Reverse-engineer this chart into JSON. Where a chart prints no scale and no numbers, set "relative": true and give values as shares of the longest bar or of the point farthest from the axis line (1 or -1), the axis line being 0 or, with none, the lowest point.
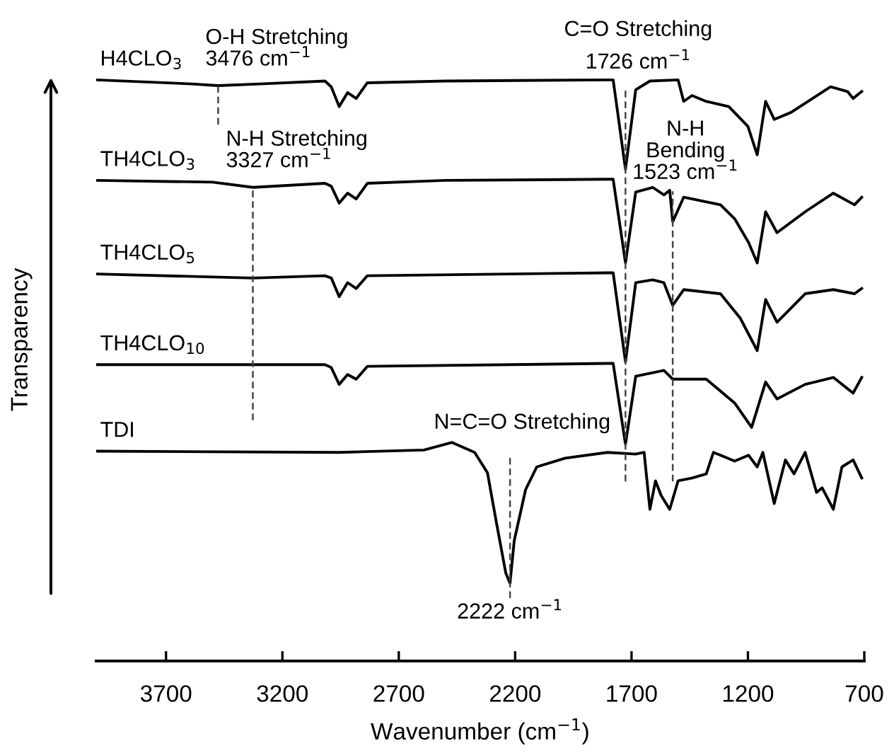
{
  "chart_data": {
    "type": "line",
    "relative": true,
    "xlabel": "Wavenumber (cm$^{−1}$)",
    "ylabel": "Transparency",
    "xlim": [
      4000,
      700
    ],
    "xticks": [
      3700,
      3200,
      2700,
      2200,
      1700,
      1200,
      700
    ],
    "grid": false,
    "legend": false,
    "marker": "none",
    "line_style": "solid",
    "series": [
      {
        "name": "H4CLO$_{3}$",
        "color": "#000000",
        "x": [
          4000,
          3587,
          3476,
          3300,
          3017,
          2990,
          2956,
          2920,
          2883,
          2835,
          2500,
          1803,
          1779,
          1726,
          1682,
          1621,
          1500,
          1476,
          1440,
          1380,
          1282,
          1200,
          1160,
          1124,
          1087,
          1015,
          845,
          772,
          748,
          711
        ],
        "values": [
          1.0,
          0.993,
          0.99,
          0.993,
          0.998,
          0.988,
          0.954,
          0.978,
          0.968,
          0.995,
          0.998,
          1.0,
          1.0,
          0.846,
          0.983,
          0.998,
          1.0,
          0.963,
          0.973,
          0.963,
          0.954,
          0.92,
          0.871,
          0.963,
          0.932,
          0.944,
          0.988,
          0.98,
          0.968,
          0.98
        ]
      },
      {
        "name": "TH4CLO$_{3}$",
        "color": "#000000",
        "x": [
          4000,
          3500,
          3326,
          3017,
          2990,
          2956,
          2920,
          2883,
          2835,
          2500,
          1803,
          1779,
          1726,
          1682,
          1609,
          1561,
          1536,
          1523,
          1476,
          1318,
          1257,
          1197,
          1160,
          1124,
          1075,
          954,
          833,
          742,
          711
        ],
        "values": [
          0.827,
          0.824,
          0.815,
          0.822,
          0.817,
          0.788,
          0.805,
          0.795,
          0.822,
          0.827,
          0.829,
          0.829,
          0.685,
          0.807,
          0.815,
          0.802,
          0.81,
          0.756,
          0.798,
          0.785,
          0.761,
          0.72,
          0.685,
          0.773,
          0.737,
          0.773,
          0.805,
          0.785,
          0.798
        ]
      },
      {
        "name": "TH4CLO$_{5}$",
        "color": "#000000",
        "x": [
          4000,
          3326,
          3017,
          2990,
          2956,
          2920,
          2883,
          2835,
          1803,
          1779,
          1726,
          1682,
          1609,
          1561,
          1523,
          1476,
          1318,
          1233,
          1160,
          1124,
          1075,
          954,
          833,
          742,
          711
        ],
        "values": [
          0.666,
          0.659,
          0.663,
          0.659,
          0.627,
          0.651,
          0.641,
          0.663,
          0.668,
          0.668,
          0.515,
          0.651,
          0.656,
          0.651,
          0.612,
          0.639,
          0.632,
          0.59,
          0.534,
          0.622,
          0.583,
          0.632,
          0.639,
          0.632,
          0.641
        ]
      },
      {
        "name": "TH4CLO$_{10}$",
        "color": "#000000",
        "x": [
          4000,
          3017,
          2990,
          2956,
          2920,
          2883,
          2835,
          1803,
          1779,
          1726,
          1682,
          1561,
          1523,
          1379,
          1257,
          1184,
          1124,
          1075,
          954,
          833,
          748,
          711
        ],
        "values": [
          0.51,
          0.51,
          0.505,
          0.476,
          0.493,
          0.485,
          0.507,
          0.512,
          0.512,
          0.373,
          0.49,
          0.5,
          0.485,
          0.485,
          0.444,
          0.402,
          0.48,
          0.451,
          0.476,
          0.488,
          0.461,
          0.488
        ]
      },
      {
        "name": "TDI",
        "color": "#000000",
        "x": [
          4000,
          2956,
          2592,
          2471,
          2374,
          2319,
          2280,
          2240,
          2222,
          2204,
          2155,
          2107,
          1985,
          1803,
          1682,
          1646,
          1621,
          1597,
          1573,
          1536,
          1500,
          1439,
          1379,
          1348,
          1257,
          1197,
          1160,
          1136,
          1087,
          1039,
          1002,
          954,
          905,
          881,
          833,
          796,
          748,
          711
        ],
        "values": [
          0.361,
          0.359,
          0.363,
          0.376,
          0.359,
          0.324,
          0.237,
          0.151,
          0.134,
          0.207,
          0.295,
          0.334,
          0.349,
          0.359,
          0.356,
          0.359,
          0.261,
          0.31,
          0.285,
          0.261,
          0.31,
          0.315,
          0.322,
          0.359,
          0.344,
          0.354,
          0.334,
          0.359,
          0.271,
          0.346,
          0.322,
          0.359,
          0.29,
          0.298,
          0.261,
          0.334,
          0.346,
          0.315
        ]
      }
    ],
    "annotations": [
      {
        "text": "O-H Stretching\n3476 cm$^{−1}$",
        "x": 3476,
        "y": 0.99
      },
      {
        "text": "N-H Stretching\n3327 cm$^{−1}$",
        "x": 3327,
        "y": 0.815
      },
      {
        "text": "C=O Stretching\n1726 cm$^{−1}$",
        "x": 1726,
        "y": 0.846
      },
      {
        "text": "N-H\nBending\n1523 cm$^{−1}$",
        "x": 1523,
        "y": 0.807
      },
      {
        "text": "N=C=O Stretching",
        "x": 2222,
        "y": 0.134
      },
      {
        "text": "2222 cm$^{−1}$",
        "x": 2222,
        "y": 0.134
      }
    ]
  }
}
